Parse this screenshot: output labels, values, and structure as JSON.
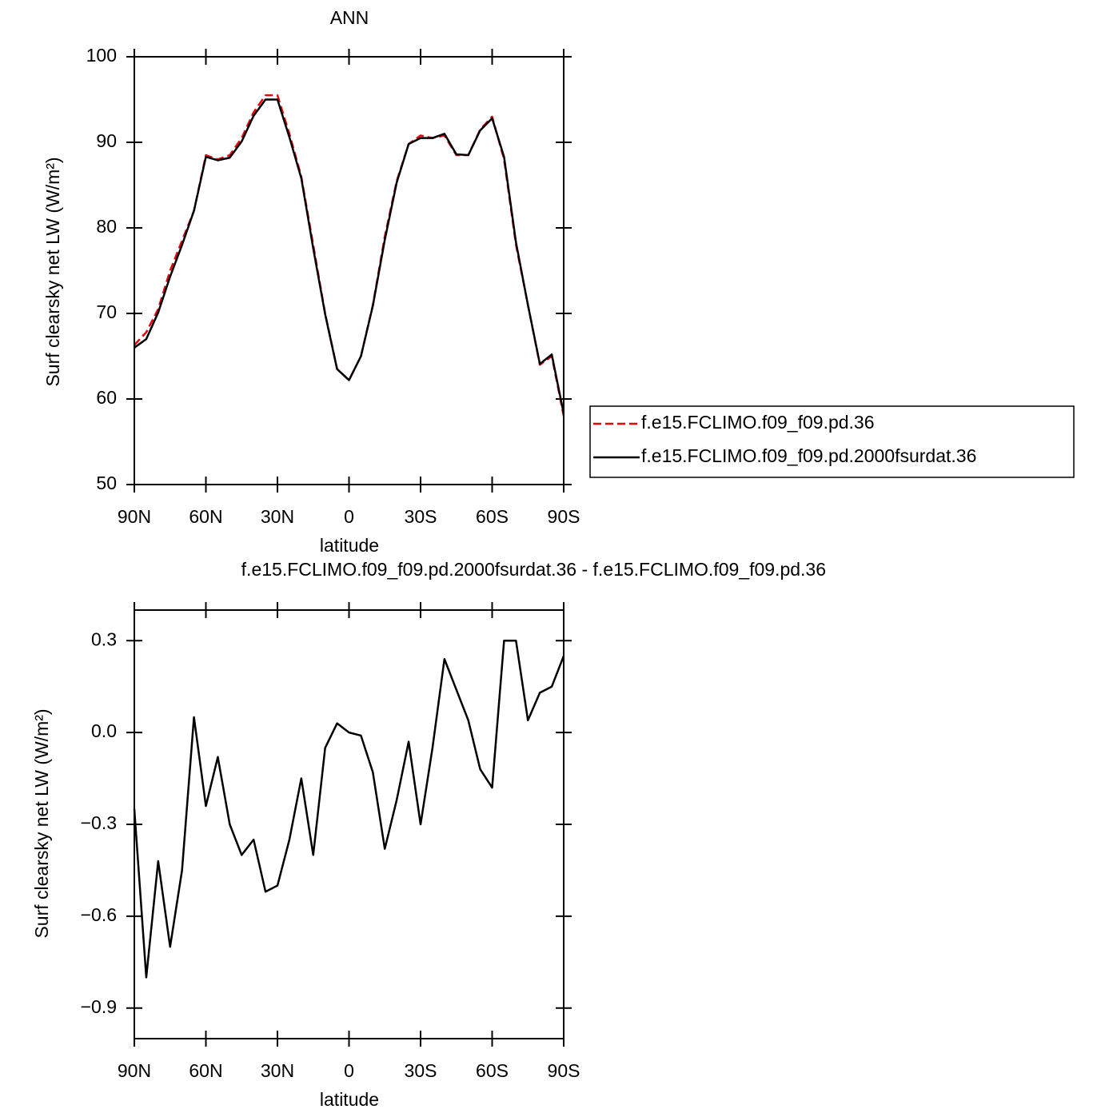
{
  "chart_data": [
    {
      "type": "line",
      "title": "ANN",
      "xlabel": "latitude",
      "ylabel": "Surf clearsky net LW (W/m²)",
      "x": [
        90,
        85,
        80,
        75,
        70,
        65,
        60,
        55,
        50,
        45,
        40,
        35,
        30,
        25,
        20,
        15,
        10,
        5,
        0,
        -5,
        -10,
        -15,
        -20,
        -25,
        -30,
        -35,
        -40,
        -45,
        -50,
        -55,
        -60,
        -65,
        -70,
        -75,
        -80,
        -85,
        -90
      ],
      "xlim": [
        90,
        -90
      ],
      "xticks": [
        {
          "value": 90,
          "label": "90N"
        },
        {
          "value": 60,
          "label": "60N"
        },
        {
          "value": 30,
          "label": "30N"
        },
        0,
        {
          "value": -30,
          "label": "30S"
        },
        {
          "value": -60,
          "label": "60S"
        },
        {
          "value": -90,
          "label": "90S"
        }
      ],
      "ylim": [
        50,
        100
      ],
      "yticks": [
        50,
        60,
        70,
        80,
        90,
        100
      ],
      "legend": "right",
      "series": [
        {
          "name": "f.e15.FCLIMO.f09_f09.pd.36",
          "color": "#e8000b",
          "dashed": true,
          "values": [
            66.3,
            67.8,
            70.5,
            75,
            78.5,
            82,
            88.5,
            88,
            88.5,
            90.5,
            93.5,
            95.5,
            95.5,
            91,
            86,
            78,
            70,
            63.5,
            62.2,
            65,
            71,
            79,
            85.5,
            89.8,
            90.8,
            90.5,
            90.8,
            88.5,
            88.5,
            91.5,
            93,
            88,
            78,
            71,
            64,
            65,
            58
          ]
        },
        {
          "name": "f.e15.FCLIMO.f09_f09.pd.2000fsurdat.36",
          "color": "#000000",
          "dashed": false,
          "values": [
            66,
            67,
            70.1,
            74.3,
            78,
            82,
            88.3,
            87.9,
            88.2,
            90.1,
            93.1,
            95,
            95,
            90.6,
            85.8,
            77.6,
            69.9,
            63.5,
            62.2,
            65,
            70.9,
            78.6,
            85.3,
            89.8,
            90.5,
            90.5,
            91,
            88.6,
            88.5,
            91.4,
            92.8,
            88.3,
            78.3,
            71,
            64.1,
            65.2,
            58.3
          ]
        }
      ]
    },
    {
      "type": "line",
      "title": "f.e15.FCLIMO.f09_f09.pd.2000fsurdat.36 - f.e15.FCLIMO.f09_f09.pd.36",
      "xlabel": "latitude",
      "ylabel": "Surf clearsky net LW (W/m²)",
      "x": [
        90,
        85,
        80,
        75,
        70,
        65,
        60,
        55,
        50,
        45,
        40,
        35,
        30,
        25,
        20,
        15,
        10,
        5,
        0,
        -5,
        -10,
        -15,
        -20,
        -25,
        -30,
        -35,
        -40,
        -45,
        -50,
        -55,
        -60,
        -65,
        -70,
        -75,
        -80,
        -85,
        -90
      ],
      "xlim": [
        90,
        -90
      ],
      "xticks": [
        {
          "value": 90,
          "label": "90N"
        },
        {
          "value": 60,
          "label": "60N"
        },
        {
          "value": 30,
          "label": "30N"
        },
        0,
        {
          "value": -30,
          "label": "30S"
        },
        {
          "value": -60,
          "label": "60S"
        },
        {
          "value": -90,
          "label": "90S"
        }
      ],
      "ylim": [
        -1,
        0.4
      ],
      "yticks": [
        {
          "value": -0.9,
          "label": "−0.9"
        },
        {
          "value": -0.6,
          "label": "−0.6"
        },
        {
          "value": -0.3,
          "label": "−0.3"
        },
        {
          "value": 0,
          "label": "0.0"
        },
        0.3
      ],
      "series": [
        {
          "name": null,
          "color": "#000000",
          "dashed": false,
          "values": [
            -0.25,
            -0.8,
            -0.42,
            -0.7,
            -0.45,
            0.05,
            -0.24,
            -0.08,
            -0.3,
            -0.4,
            -0.35,
            -0.52,
            -0.5,
            -0.35,
            -0.15,
            -0.4,
            -0.05,
            0.03,
            0,
            -0.01,
            -0.13,
            -0.38,
            -0.22,
            -0.03,
            -0.3,
            -0.05,
            0.24,
            0.14,
            0.04,
            -0.12,
            -0.18,
            0.3,
            0.3,
            0.04,
            0.13,
            0.15,
            0.25
          ]
        }
      ]
    }
  ]
}
